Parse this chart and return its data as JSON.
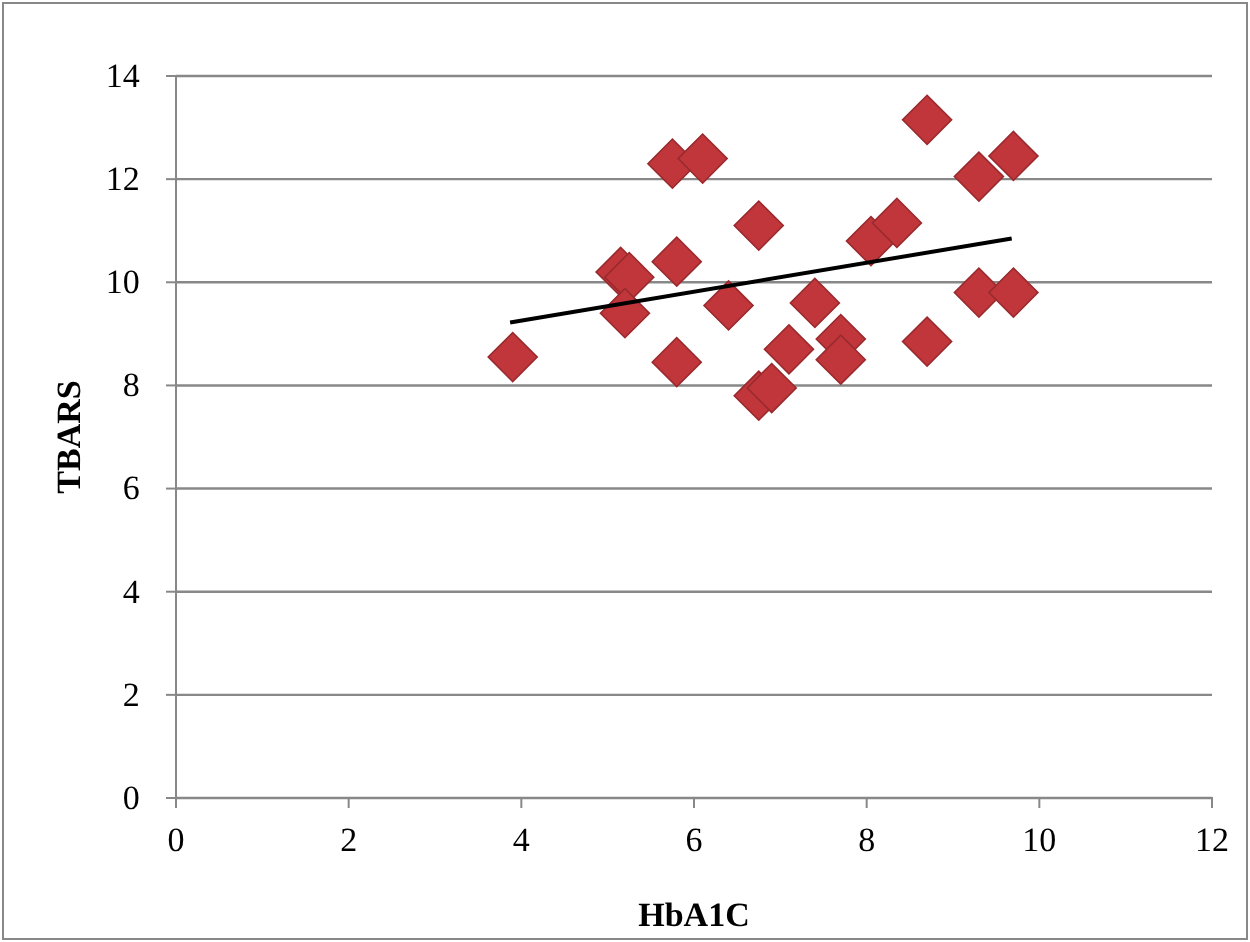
{
  "chart_data": {
    "type": "scatter",
    "xlabel": "HbA1C",
    "ylabel": "TBARS",
    "xlim": [
      0,
      12
    ],
    "xticks": [
      0,
      2,
      4,
      6,
      8,
      10,
      12
    ],
    "ylim": [
      0,
      14
    ],
    "yticks": [
      0,
      2,
      4,
      6,
      8,
      10,
      12,
      14
    ],
    "grid": "y",
    "series": [
      {
        "marker": "diamond",
        "color": "#c0363a",
        "x": [
          3.9,
          5.15,
          5.25,
          5.2,
          5.8,
          5.8,
          5.75,
          6.1,
          6.4,
          6.75,
          6.75,
          6.9,
          7.1,
          7.4,
          7.7,
          7.7,
          8.05,
          8.35,
          8.7,
          8.7,
          9.3,
          9.3,
          9.7,
          9.7
        ],
        "values": [
          8.55,
          10.2,
          10.1,
          9.4,
          10.4,
          8.45,
          12.3,
          12.4,
          9.55,
          11.1,
          7.8,
          7.95,
          8.7,
          9.6,
          8.9,
          8.5,
          10.8,
          11.15,
          13.15,
          8.85,
          9.8,
          12.05,
          12.45,
          9.8
        ]
      },
      {
        "type": "line",
        "color": "#000000",
        "x": [
          3.87,
          9.68
        ],
        "values": [
          9.22,
          10.85
        ]
      }
    ]
  }
}
